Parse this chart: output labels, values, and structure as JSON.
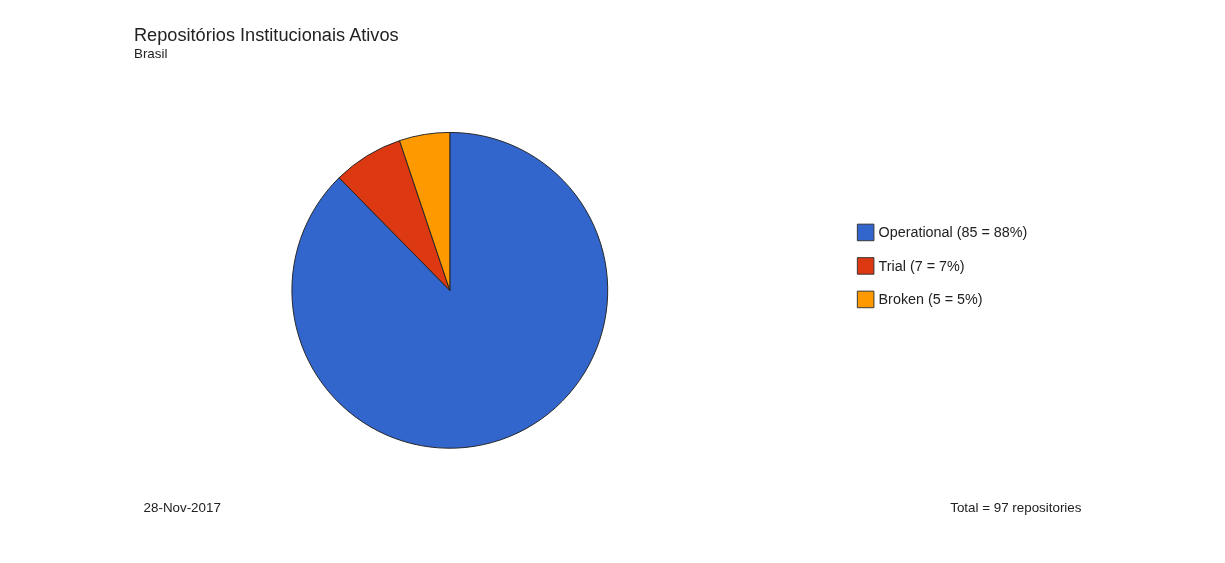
{
  "chart_data": {
    "type": "pie",
    "title": "Repositórios Institucionais Ativos",
    "subtitle": "Brasil",
    "categories": [
      "Operational (85 = 88%)",
      "Trial (7 = 7%)",
      "Broken (5 = 5%)"
    ],
    "values": [
      85,
      7,
      5
    ],
    "colors": [
      "#3366cc",
      "#dc3912",
      "#ff9900"
    ],
    "legend": "right",
    "annotations": [
      "28-Nov-2017",
      "Total = 97 repositories"
    ]
  }
}
